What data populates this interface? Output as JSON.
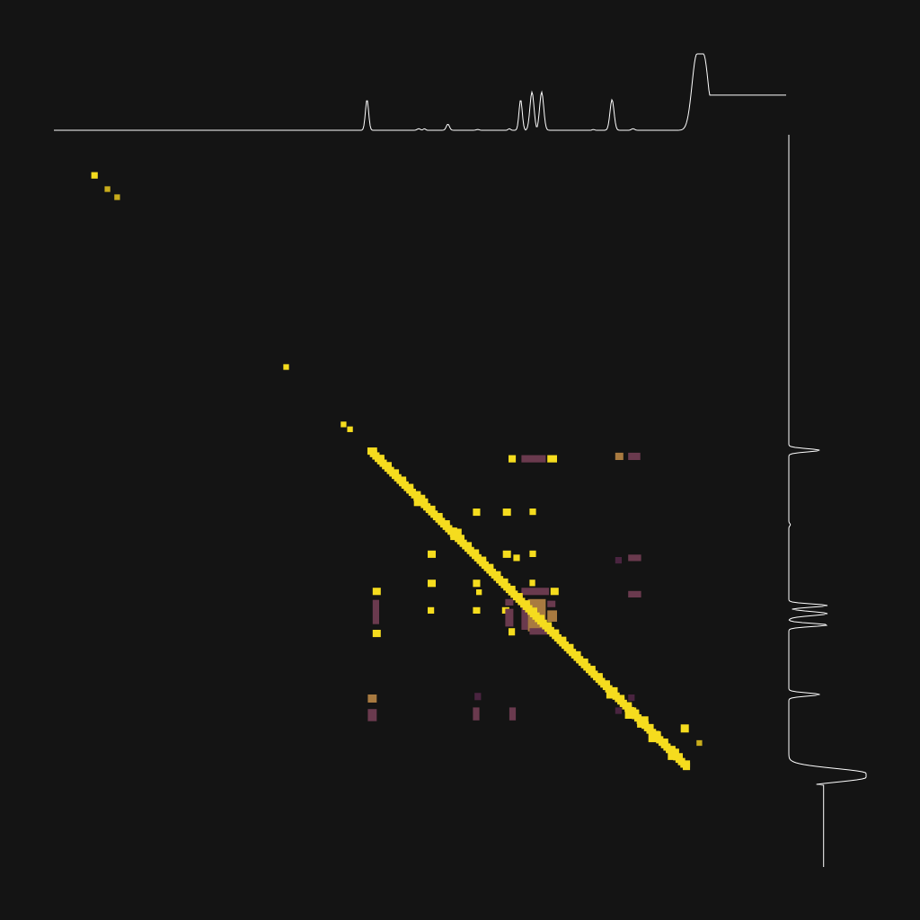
{
  "colors": {
    "background": "#141414",
    "trace": "#ffffff",
    "strong": "#f5dc1e",
    "medium_strong": "#c8ac1c",
    "medium": "#a87a40",
    "weak": "#6a3a4e",
    "faint": "#4a2440"
  },
  "chart_data": {
    "type": "heatmap",
    "description_note": "",
    "xlim": [
      0,
      800
    ],
    "ylim": [
      0,
      800
    ],
    "top_trace": {
      "baseline": 0,
      "peaks": [
        {
          "pos": 365,
          "height": 0.4,
          "width": 2.0
        },
        {
          "pos": 429,
          "height": 0.02,
          "width": 2.0
        },
        {
          "pos": 436,
          "height": 0.02,
          "width": 1.5
        },
        {
          "pos": 465,
          "height": 0.08,
          "width": 2.0
        },
        {
          "pos": 502,
          "height": 0.01,
          "width": 2.0
        },
        {
          "pos": 541,
          "height": 0.02,
          "width": 1.5
        },
        {
          "pos": 555,
          "height": 0.4,
          "width": 2.0
        },
        {
          "pos": 569,
          "height": 0.5,
          "width": 2.5
        },
        {
          "pos": 581,
          "height": 0.5,
          "width": 2.5
        },
        {
          "pos": 645,
          "height": 0.01,
          "width": 1.5
        },
        {
          "pos": 668,
          "height": 0.4,
          "width": 2.5
        },
        {
          "pos": 694,
          "height": 0.02,
          "width": 2.0
        },
        {
          "pos": 777,
          "height": 1.0,
          "width": 6.0,
          "plateau": 8
        }
      ]
    },
    "right_trace": {
      "baseline": 0,
      "peaks": [
        {
          "pos": 368,
          "height": 0.4,
          "width": 2.0
        },
        {
          "pos": 460,
          "height": 0.02,
          "width": 1.5
        },
        {
          "pos": 560,
          "height": 0.5,
          "width": 2.0
        },
        {
          "pos": 570,
          "height": 0.5,
          "width": 2.5
        },
        {
          "pos": 584,
          "height": 0.5,
          "width": 2.0
        },
        {
          "pos": 670,
          "height": 0.4,
          "width": 2.0
        },
        {
          "pos": 770,
          "height": 1.0,
          "width": 6.0,
          "plateau": 5
        }
      ]
    },
    "diagonal": [
      {
        "x": 28,
        "y": 28,
        "s": 8,
        "level": "strong"
      },
      {
        "x": 44,
        "y": 45,
        "s": 7,
        "level": "medium_strong"
      },
      {
        "x": 56,
        "y": 55,
        "s": 7,
        "level": "medium_strong"
      },
      {
        "x": 265,
        "y": 265,
        "s": 7,
        "level": "strong"
      },
      {
        "x": 336,
        "y": 336,
        "s": 7,
        "level": "strong"
      },
      {
        "x": 344,
        "y": 342,
        "s": 7,
        "level": "strong"
      },
      {
        "x": 370,
        "y": 369,
        "s": 6,
        "level": "strong"
      },
      {
        "x": 776,
        "y": 730,
        "s": 7,
        "level": "medium_strong"
      },
      {
        "x": 758,
        "y": 712,
        "s": 10,
        "level": "strong"
      }
    ],
    "diagonal_band": {
      "from": 370,
      "to": 760,
      "s": 9,
      "level": "strong"
    },
    "cells": [
      {
        "x": 540,
        "y": 374,
        "w": 9,
        "h": 9,
        "level": "strong"
      },
      {
        "x": 556,
        "y": 374,
        "w": 30,
        "h": 9,
        "level": "weak"
      },
      {
        "x": 588,
        "y": 374,
        "w": 12,
        "h": 9,
        "level": "strong"
      },
      {
        "x": 672,
        "y": 371,
        "w": 10,
        "h": 9,
        "level": "medium"
      },
      {
        "x": 688,
        "y": 371,
        "w": 15,
        "h": 9,
        "level": "weak"
      },
      {
        "x": 496,
        "y": 440,
        "w": 9,
        "h": 9,
        "level": "strong"
      },
      {
        "x": 533,
        "y": 440,
        "w": 10,
        "h": 9,
        "level": "strong"
      },
      {
        "x": 566,
        "y": 440,
        "w": 8,
        "h": 8,
        "level": "strong"
      },
      {
        "x": 440,
        "y": 492,
        "w": 10,
        "h": 9,
        "level": "strong"
      },
      {
        "x": 533,
        "y": 492,
        "w": 10,
        "h": 9,
        "level": "strong"
      },
      {
        "x": 566,
        "y": 492,
        "w": 8,
        "h": 8,
        "level": "strong"
      },
      {
        "x": 546,
        "y": 497,
        "w": 8,
        "h": 8,
        "level": "strong"
      },
      {
        "x": 672,
        "y": 500,
        "w": 8,
        "h": 8,
        "level": "faint"
      },
      {
        "x": 688,
        "y": 497,
        "w": 16,
        "h": 8,
        "level": "weak"
      },
      {
        "x": 440,
        "y": 528,
        "w": 10,
        "h": 9,
        "level": "strong"
      },
      {
        "x": 496,
        "y": 528,
        "w": 9,
        "h": 9,
        "level": "strong"
      },
      {
        "x": 500,
        "y": 540,
        "w": 7,
        "h": 7,
        "level": "strong"
      },
      {
        "x": 566,
        "y": 528,
        "w": 7,
        "h": 8,
        "level": "strong"
      },
      {
        "x": 556,
        "y": 538,
        "w": 34,
        "h": 9,
        "level": "weak"
      },
      {
        "x": 592,
        "y": 538,
        "w": 10,
        "h": 9,
        "level": "strong"
      },
      {
        "x": 688,
        "y": 542,
        "w": 16,
        "h": 8,
        "level": "weak"
      },
      {
        "x": 372,
        "y": 538,
        "w": 10,
        "h": 9,
        "level": "strong"
      },
      {
        "x": 372,
        "y": 553,
        "w": 8,
        "h": 30,
        "level": "weak"
      },
      {
        "x": 372,
        "y": 590,
        "w": 10,
        "h": 9,
        "level": "strong"
      },
      {
        "x": 440,
        "y": 562,
        "w": 8,
        "h": 8,
        "level": "strong"
      },
      {
        "x": 496,
        "y": 562,
        "w": 9,
        "h": 8,
        "level": "strong"
      },
      {
        "x": 532,
        "y": 562,
        "w": 9,
        "h": 8,
        "level": "strong"
      },
      {
        "x": 536,
        "y": 552,
        "w": 10,
        "h": 8,
        "level": "weak"
      },
      {
        "x": 536,
        "y": 564,
        "w": 10,
        "h": 22,
        "level": "weak"
      },
      {
        "x": 540,
        "y": 588,
        "w": 8,
        "h": 9,
        "level": "strong"
      },
      {
        "x": 556,
        "y": 556,
        "w": 8,
        "h": 34,
        "level": "weak"
      },
      {
        "x": 564,
        "y": 552,
        "w": 22,
        "h": 40,
        "level": "medium"
      },
      {
        "x": 588,
        "y": 554,
        "w": 10,
        "h": 8,
        "level": "weak"
      },
      {
        "x": 588,
        "y": 566,
        "w": 12,
        "h": 14,
        "level": "medium"
      },
      {
        "x": 566,
        "y": 588,
        "w": 30,
        "h": 8,
        "level": "weak"
      },
      {
        "x": 366,
        "y": 670,
        "w": 11,
        "h": 10,
        "level": "medium"
      },
      {
        "x": 366,
        "y": 688,
        "w": 11,
        "h": 15,
        "level": "weak"
      },
      {
        "x": 498,
        "y": 668,
        "w": 8,
        "h": 9,
        "level": "faint"
      },
      {
        "x": 496,
        "y": 686,
        "w": 8,
        "h": 16,
        "level": "weak"
      },
      {
        "x": 541,
        "y": 686,
        "w": 8,
        "h": 16,
        "level": "weak"
      },
      {
        "x": 688,
        "y": 670,
        "w": 8,
        "h": 8,
        "level": "faint"
      },
      {
        "x": 672,
        "y": 686,
        "w": 8,
        "h": 8,
        "level": "faint"
      },
      {
        "x": 684,
        "y": 686,
        "w": 14,
        "h": 14,
        "level": "strong"
      }
    ]
  }
}
